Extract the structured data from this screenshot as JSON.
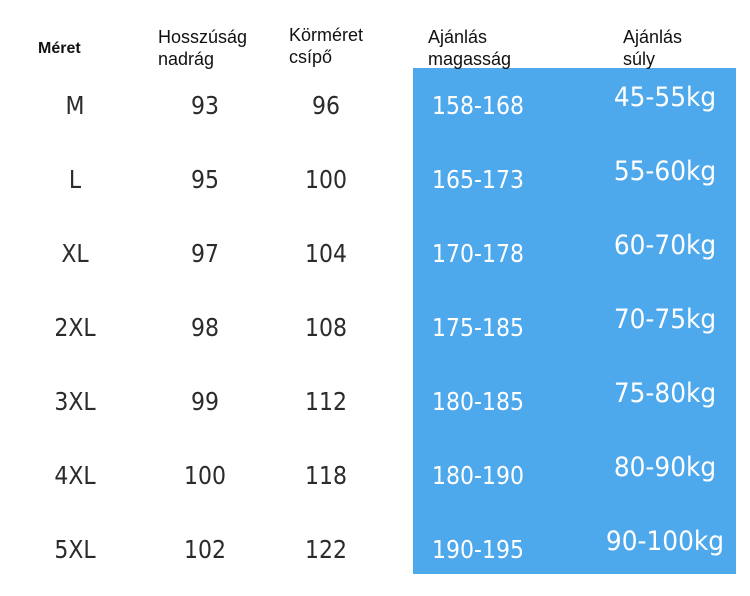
{
  "headers": {
    "size": "Méret",
    "pants_length": "Hosszúság\nnadrág",
    "hip": "Körméret\ncsípő",
    "height": "Ajánlás\nmagasság",
    "weight": "Ajánlás\nsúly"
  },
  "rows": [
    {
      "size": "M",
      "length": "93",
      "hip": "96",
      "height": "158-168",
      "weight": "45-55kg"
    },
    {
      "size": "L",
      "length": "95",
      "hip": "100",
      "height": "165-173",
      "weight": "55-60kg"
    },
    {
      "size": "XL",
      "length": "97",
      "hip": "104",
      "height": "170-178",
      "weight": "60-70kg"
    },
    {
      "size": "2XL",
      "length": "98",
      "hip": "108",
      "height": "175-185",
      "weight": "70-75kg"
    },
    {
      "size": "3XL",
      "length": "99",
      "hip": "112",
      "height": "180-185",
      "weight": "75-80kg"
    },
    {
      "size": "4XL",
      "length": "100",
      "hip": "118",
      "height": "180-190",
      "weight": "80-90kg"
    },
    {
      "size": "5XL",
      "length": "102",
      "hip": "122",
      "height": "190-195",
      "weight": "90-100kg"
    }
  ],
  "colors": {
    "highlight": "#4ea8ec",
    "text": "#2b2b2b",
    "highlight_text": "#ffffff"
  }
}
